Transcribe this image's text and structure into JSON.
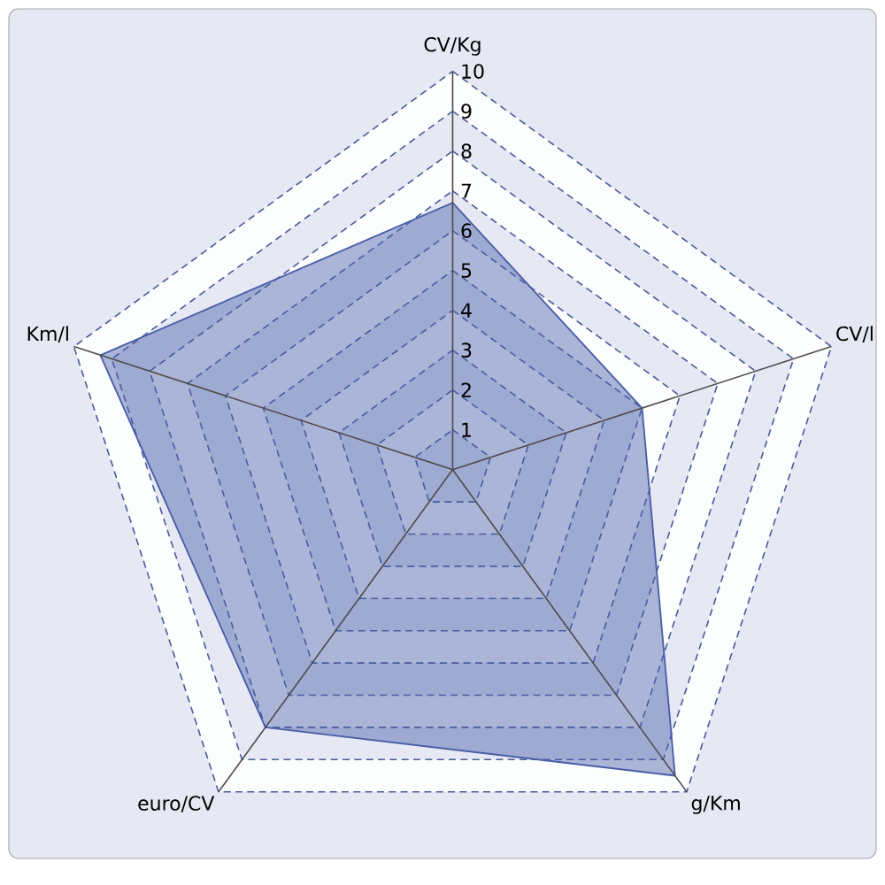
{
  "chart_data": {
    "type": "radar",
    "categories": [
      "CV/Kg",
      "CV/l",
      "g/Km",
      "euro/CV",
      "Km/l"
    ],
    "series": [
      {
        "color": "#4a5ea8",
        "values": [
          6.7,
          5.0,
          9.5,
          8.0,
          9.3
        ]
      }
    ],
    "ylim": [
      0,
      10
    ],
    "yticks": [
      1,
      2,
      3,
      4,
      5,
      6,
      7,
      8,
      9,
      10
    ],
    "grid": true
  }
}
